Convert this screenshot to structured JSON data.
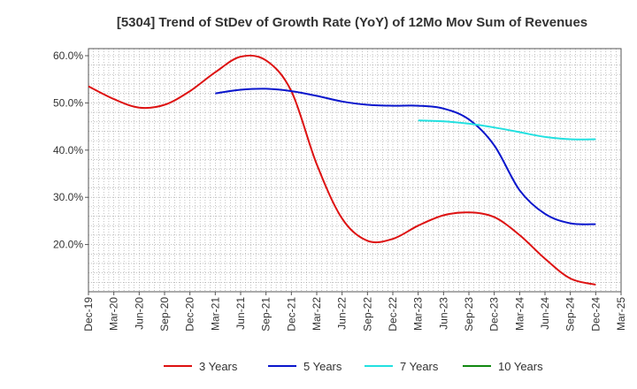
{
  "chart_data": {
    "type": "line",
    "title": "[5304]  Trend of StDev of Growth Rate (YoY) of 12Mo Mov Sum of Revenues",
    "xlabel": "",
    "ylabel": "",
    "ylim": [
      10.0,
      61.5
    ],
    "yticks": [
      20,
      30,
      40,
      50,
      60
    ],
    "ytick_labels": [
      "20.0%",
      "30.0%",
      "40.0%",
      "50.0%",
      "60.0%"
    ],
    "grid": true,
    "legend_position": "bottom",
    "categories": [
      "Dec-19",
      "Mar-20",
      "Jun-20",
      "Sep-20",
      "Dec-20",
      "Mar-21",
      "Jun-21",
      "Sep-21",
      "Dec-21",
      "Mar-22",
      "Jun-22",
      "Sep-22",
      "Dec-22",
      "Mar-23",
      "Jun-23",
      "Sep-23",
      "Dec-23",
      "Mar-24",
      "Jun-24",
      "Sep-24",
      "Dec-24",
      "Mar-25"
    ],
    "series": [
      {
        "name": "3 Years",
        "color": "#dd1111",
        "values": [
          53.5,
          50.8,
          49.0,
          49.6,
          52.5,
          56.5,
          59.8,
          59.0,
          52.5,
          37.0,
          25.5,
          20.8,
          21.2,
          24.0,
          26.2,
          26.8,
          25.8,
          22.0,
          17.0,
          12.8,
          11.5,
          null
        ]
      },
      {
        "name": "5 Years",
        "color": "#0a16cc",
        "values": [
          null,
          null,
          null,
          null,
          null,
          52.0,
          52.8,
          53.0,
          52.5,
          51.5,
          50.3,
          49.6,
          49.4,
          49.4,
          48.8,
          46.5,
          41.0,
          31.5,
          26.5,
          24.5,
          24.3,
          null
        ]
      },
      {
        "name": "7 Years",
        "color": "#22e0e0",
        "values": [
          null,
          null,
          null,
          null,
          null,
          null,
          null,
          null,
          null,
          null,
          null,
          null,
          null,
          46.3,
          46.1,
          45.6,
          44.8,
          43.8,
          42.8,
          42.3,
          42.3,
          null
        ]
      },
      {
        "name": "10 Years",
        "color": "#118811",
        "values": [
          null,
          null,
          null,
          null,
          null,
          null,
          null,
          null,
          null,
          null,
          null,
          null,
          null,
          null,
          null,
          null,
          null,
          null,
          null,
          null,
          null,
          null
        ]
      }
    ]
  }
}
